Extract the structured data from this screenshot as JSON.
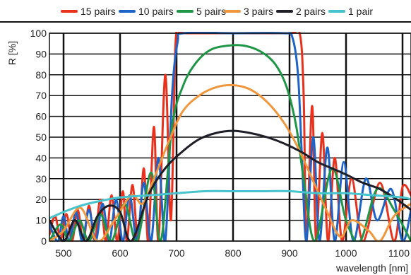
{
  "chart_data": {
    "type": "line",
    "title": "",
    "xlabel": "wavelength [nm]",
    "ylabel": "R [%]",
    "xlim": [
      475,
      1115
    ],
    "ylim": [
      0,
      100
    ],
    "x_ticks": [
      500,
      600,
      700,
      800,
      900,
      1000,
      1100
    ],
    "y_ticks": [
      0,
      10,
      20,
      30,
      40,
      50,
      60,
      70,
      80,
      90,
      100
    ],
    "grid": true,
    "legend_position": "top",
    "series": [
      {
        "name": "15 pairs",
        "color": "#e8321e",
        "points": [
          [
            475,
            3
          ],
          [
            485,
            12
          ],
          [
            495,
            1
          ],
          [
            505,
            13
          ],
          [
            515,
            0
          ],
          [
            525,
            15
          ],
          [
            535,
            0
          ],
          [
            545,
            17
          ],
          [
            555,
            0
          ],
          [
            565,
            20
          ],
          [
            575,
            0
          ],
          [
            585,
            22
          ],
          [
            595,
            0
          ],
          [
            605,
            24
          ],
          [
            612,
            0
          ],
          [
            622,
            27
          ],
          [
            632,
            0
          ],
          [
            642,
            35
          ],
          [
            650,
            0
          ],
          [
            660,
            55
          ],
          [
            668,
            0
          ],
          [
            680,
            80
          ],
          [
            690,
            10
          ],
          [
            698,
            94
          ],
          [
            706,
            100
          ],
          [
            720,
            100
          ],
          [
            800,
            100
          ],
          [
            900,
            100
          ],
          [
            918,
            100
          ],
          [
            925,
            70
          ],
          [
            930,
            0
          ],
          [
            940,
            65
          ],
          [
            947,
            0
          ],
          [
            958,
            52
          ],
          [
            968,
            0
          ],
          [
            980,
            40
          ],
          [
            993,
            0
          ],
          [
            1010,
            30
          ],
          [
            1030,
            0
          ],
          [
            1060,
            28
          ],
          [
            1085,
            0
          ],
          [
            1100,
            26
          ],
          [
            1115,
            22
          ]
        ]
      },
      {
        "name": "10 pairs",
        "color": "#1e64c8",
        "points": [
          [
            475,
            8
          ],
          [
            490,
            0
          ],
          [
            500,
            12
          ],
          [
            510,
            0
          ],
          [
            522,
            14
          ],
          [
            533,
            0
          ],
          [
            545,
            15
          ],
          [
            557,
            0
          ],
          [
            569,
            18
          ],
          [
            581,
            0
          ],
          [
            593,
            20
          ],
          [
            605,
            0
          ],
          [
            617,
            22
          ],
          [
            630,
            0
          ],
          [
            642,
            28
          ],
          [
            655,
            0
          ],
          [
            668,
            40
          ],
          [
            680,
            0
          ],
          [
            692,
            70
          ],
          [
            702,
            96
          ],
          [
            712,
            100
          ],
          [
            800,
            100
          ],
          [
            890,
            100
          ],
          [
            905,
            98
          ],
          [
            915,
            80
          ],
          [
            922,
            40
          ],
          [
            930,
            0
          ],
          [
            942,
            50
          ],
          [
            953,
            0
          ],
          [
            967,
            45
          ],
          [
            980,
            0
          ],
          [
            996,
            38
          ],
          [
            1013,
            0
          ],
          [
            1035,
            30
          ],
          [
            1055,
            10
          ],
          [
            1080,
            25
          ],
          [
            1100,
            0
          ],
          [
            1115,
            15
          ]
        ]
      },
      {
        "name": "5 pairs",
        "color": "#1e9646",
        "points": [
          [
            475,
            0
          ],
          [
            495,
            8
          ],
          [
            510,
            0
          ],
          [
            528,
            10
          ],
          [
            545,
            0
          ],
          [
            565,
            13
          ],
          [
            585,
            0
          ],
          [
            608,
            18
          ],
          [
            630,
            0
          ],
          [
            655,
            33
          ],
          [
            672,
            0
          ],
          [
            692,
            55
          ],
          [
            712,
            75
          ],
          [
            735,
            86
          ],
          [
            760,
            92
          ],
          [
            790,
            94
          ],
          [
            820,
            94
          ],
          [
            850,
            91
          ],
          [
            875,
            85
          ],
          [
            895,
            74
          ],
          [
            912,
            55
          ],
          [
            925,
            30
          ],
          [
            945,
            0
          ],
          [
            975,
            35
          ],
          [
            1000,
            10
          ],
          [
            1025,
            0
          ],
          [
            1055,
            25
          ],
          [
            1085,
            15
          ],
          [
            1115,
            0
          ]
        ]
      },
      {
        "name": "3 pairs",
        "color": "#f0963c",
        "points": [
          [
            475,
            0
          ],
          [
            500,
            5
          ],
          [
            530,
            16
          ],
          [
            560,
            0
          ],
          [
            590,
            10
          ],
          [
            620,
            22
          ],
          [
            640,
            18
          ],
          [
            660,
            30
          ],
          [
            685,
            47
          ],
          [
            710,
            62
          ],
          [
            740,
            70
          ],
          [
            770,
            74
          ],
          [
            800,
            75
          ],
          [
            830,
            73
          ],
          [
            860,
            67
          ],
          [
            890,
            57
          ],
          [
            915,
            45
          ],
          [
            940,
            30
          ],
          [
            965,
            15
          ],
          [
            990,
            2
          ],
          [
            1010,
            10
          ],
          [
            1040,
            5
          ],
          [
            1060,
            0
          ],
          [
            1085,
            12
          ],
          [
            1115,
            18
          ]
        ]
      },
      {
        "name": "2 pairs",
        "color": "#1e1e28",
        "points": [
          [
            475,
            10
          ],
          [
            500,
            0
          ],
          [
            520,
            10
          ],
          [
            540,
            0
          ],
          [
            560,
            12
          ],
          [
            580,
            17
          ],
          [
            600,
            14
          ],
          [
            620,
            0
          ],
          [
            650,
            22
          ],
          [
            680,
            35
          ],
          [
            710,
            43
          ],
          [
            740,
            49
          ],
          [
            770,
            52
          ],
          [
            800,
            53
          ],
          [
            830,
            52
          ],
          [
            860,
            50
          ],
          [
            890,
            47
          ],
          [
            920,
            43
          ],
          [
            950,
            38
          ],
          [
            975,
            35
          ],
          [
            1000,
            32
          ],
          [
            1030,
            28
          ],
          [
            1060,
            25
          ],
          [
            1090,
            20
          ],
          [
            1115,
            15
          ]
        ]
      },
      {
        "name": "1 pair",
        "color": "#46c3cd",
        "points": [
          [
            475,
            11
          ],
          [
            500,
            14
          ],
          [
            530,
            17
          ],
          [
            560,
            19
          ],
          [
            600,
            21
          ],
          [
            650,
            22
          ],
          [
            700,
            23
          ],
          [
            750,
            24
          ],
          [
            800,
            24
          ],
          [
            850,
            24
          ],
          [
            900,
            24
          ],
          [
            950,
            23
          ],
          [
            1000,
            23
          ],
          [
            1050,
            22
          ],
          [
            1100,
            21
          ],
          [
            1115,
            20
          ]
        ]
      }
    ]
  }
}
